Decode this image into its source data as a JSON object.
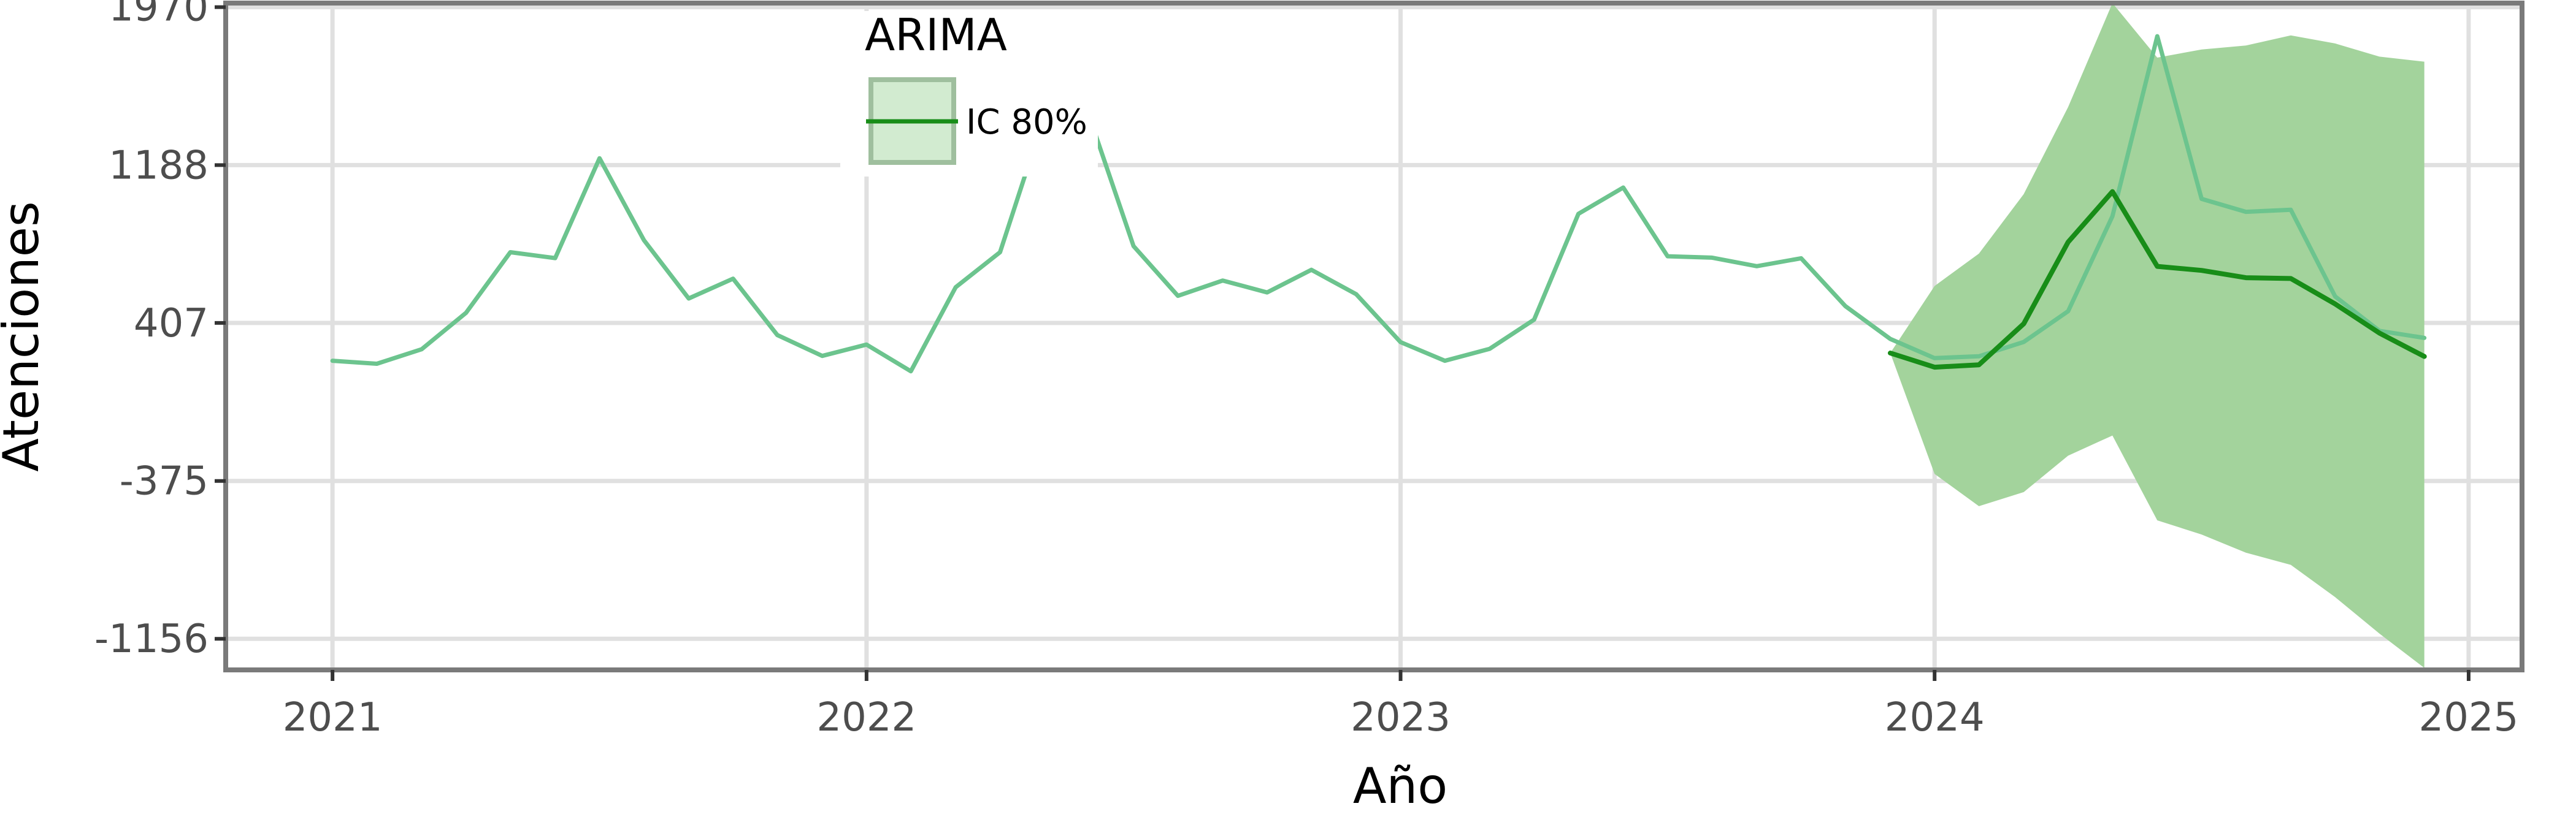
{
  "chart_data": {
    "type": "line",
    "xlabel": "Año",
    "ylabel": "Atenciones",
    "x_ticks": [
      2021,
      2022,
      2023,
      2024,
      2025
    ],
    "x_tick_labels": [
      "2021",
      "2022",
      "2023",
      "2024",
      "2025"
    ],
    "y_ticks": [
      -1156,
      -375,
      407,
      1188,
      1970
    ],
    "y_tick_labels": [
      "-1156",
      "-375",
      "407",
      "1188",
      "1970"
    ],
    "xlim": [
      2020.8,
      2025.1
    ],
    "ylim": [
      -1310,
      1990
    ],
    "grid": true,
    "legend": {
      "title": "ARIMA",
      "entries": [
        "IC 80%"
      ],
      "position": "top"
    },
    "series": [
      {
        "role": "observed",
        "x": [
          2021.0,
          2021.083,
          2021.167,
          2021.25,
          2021.333,
          2021.417,
          2021.5,
          2021.583,
          2021.667,
          2021.75,
          2021.833,
          2021.917,
          2022.0,
          2022.083,
          2022.167,
          2022.25,
          2022.333,
          2022.417,
          2022.5,
          2022.583,
          2022.667,
          2022.75,
          2022.833,
          2022.917,
          2023.0,
          2023.083,
          2023.167,
          2023.25,
          2023.333,
          2023.417,
          2023.5,
          2023.583,
          2023.667,
          2023.75,
          2023.833,
          2023.917,
          2024.0,
          2024.083,
          2024.167,
          2024.25,
          2024.333,
          2024.417,
          2024.5,
          2024.583,
          2024.667,
          2024.75,
          2024.833,
          2024.917
        ],
        "y": [
          220,
          205,
          277,
          457,
          757,
          728,
          1222,
          817,
          528,
          626,
          347,
          244,
          300,
          168,
          584,
          757,
          1430,
          1430,
          787,
          541,
          617,
          558,
          670,
          549,
          312,
          220,
          279,
          423,
          947,
          1077,
          737,
          730,
          688,
          727,
          490,
          328,
          233,
          242,
          313,
          465,
          935,
          1826,
          1021,
          957,
          967,
          538,
          368,
          333
        ]
      },
      {
        "role": "forecast",
        "x": [
          2023.917,
          2024.0,
          2024.083,
          2024.167,
          2024.25,
          2024.333,
          2024.417,
          2024.5,
          2024.583,
          2024.667,
          2024.75,
          2024.833,
          2024.917
        ],
        "y": [
          258,
          188,
          200,
          403,
          807,
          1057,
          687,
          667,
          631,
          627,
          501,
          357,
          241
        ]
      }
    ],
    "band": {
      "label": "IC 80%",
      "x": [
        2023.917,
        2024.0,
        2024.083,
        2024.167,
        2024.25,
        2024.333,
        2024.417,
        2024.5,
        2024.583,
        2024.667,
        2024.75,
        2024.833,
        2024.917
      ],
      "lower": [
        258,
        -340,
        -500,
        -430,
        -250,
        -150,
        -570,
        -640,
        -730,
        -790,
        -950,
        -1130,
        -1300
      ],
      "upper": [
        258,
        590,
        750,
        1045,
        1475,
        1990,
        1720,
        1760,
        1780,
        1830,
        1790,
        1725,
        1700
      ]
    },
    "colors": {
      "observed": "#6cc48e",
      "forecast": "#188d18",
      "band": "#a3d39c",
      "legend_key_fill": "#d2ebd0",
      "legend_key_border": "#9fbf9e",
      "panel_border": "#7a7a7a",
      "grid": "#e0e0e0"
    }
  }
}
